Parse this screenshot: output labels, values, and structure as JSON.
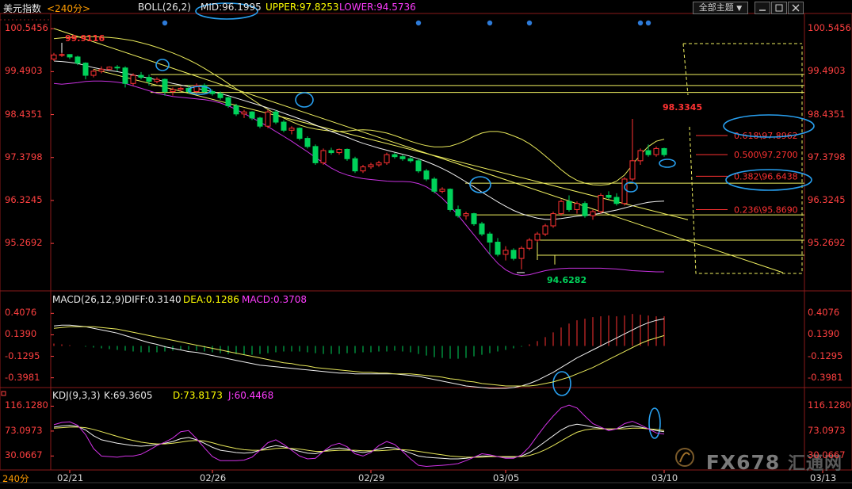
{
  "header": {
    "symbol": "美元指数",
    "period": "<240分>",
    "boll": "BOLL(26,2)",
    "mid": "MID:96.1995",
    "upper": "UPPER:97.8253",
    "lower": "LOWER:94.5736",
    "theme_button": "全部主题",
    "theme_arrow": "▼"
  },
  "macd_header": {
    "title": "MACD(26,12,9)",
    "diff": "DIFF:0.3140",
    "dea": "DEA:0.1286",
    "macd": "MACD:0.3708"
  },
  "kdj_header": {
    "title": "KDJ(9,3,3)",
    "k": "K:69.3605",
    "d": "D:73.8173",
    "j": "J:60.4468"
  },
  "period_tab": "240分",
  "watermark": "FX678",
  "watermark_cn": "汇通网",
  "colors": {
    "up": "#ff3232",
    "down": "#00d25a",
    "boll_mid": "#f0f0f0",
    "boll_band": "#e8e85a",
    "lower_band": "#c832e0",
    "fib": "#f0f060",
    "trend": "#f0f060",
    "highlight": "#28a0f0",
    "axis_label": "#ff4040"
  },
  "chart_data": [
    {
      "type": "candlestick",
      "name": "main",
      "ylim": [
        94.2,
        100.9
      ],
      "y_ticks": [
        "100.5456",
        "99.4903",
        "98.4351",
        "97.3798",
        "96.3245",
        "95.2692"
      ],
      "y_tick_values": [
        100.5456,
        99.4903,
        98.4351,
        97.3798,
        96.3245,
        95.2692
      ],
      "x_ticks": [
        "02/21",
        "02/26",
        "02/29",
        "03/05",
        "03/10",
        "03/13"
      ],
      "x_tick_index": [
        2,
        20,
        40,
        57,
        77,
        97
      ],
      "high_label": "99.9116",
      "low_label": "94.6282",
      "spike_label": "98.3345",
      "ohlc": [
        [
          99.8,
          99.95,
          99.75,
          99.9
        ],
        [
          99.9,
          99.95,
          99.85,
          99.91
        ],
        [
          99.91,
          99.92,
          99.8,
          99.85
        ],
        [
          99.85,
          99.88,
          99.65,
          99.7
        ],
        [
          99.7,
          99.72,
          99.3,
          99.4
        ],
        [
          99.4,
          99.55,
          99.35,
          99.5
        ],
        [
          99.5,
          99.62,
          99.45,
          99.55
        ],
        [
          99.55,
          99.62,
          99.52,
          99.6
        ],
        [
          99.6,
          99.65,
          99.5,
          99.58
        ],
        [
          99.58,
          99.62,
          99.1,
          99.2
        ],
        [
          99.2,
          99.45,
          99.15,
          99.4
        ],
        [
          99.4,
          99.48,
          99.3,
          99.35
        ],
        [
          99.35,
          99.42,
          99.15,
          99.25
        ],
        [
          99.25,
          99.35,
          99.2,
          99.3
        ],
        [
          99.3,
          99.32,
          98.9,
          99.0
        ],
        [
          99.0,
          99.1,
          98.9,
          99.05
        ],
        [
          99.05,
          99.12,
          99.0,
          99.08
        ],
        [
          99.08,
          99.15,
          98.95,
          99.0
        ],
        [
          99.0,
          99.2,
          98.95,
          99.15
        ],
        [
          99.15,
          99.2,
          98.95,
          99.0
        ],
        [
          99.0,
          99.05,
          98.9,
          98.95
        ],
        [
          98.95,
          99.0,
          98.8,
          98.85
        ],
        [
          98.85,
          98.88,
          98.6,
          98.65
        ],
        [
          98.65,
          98.7,
          98.4,
          98.45
        ],
        [
          98.45,
          98.55,
          98.35,
          98.5
        ],
        [
          98.5,
          98.52,
          98.3,
          98.35
        ],
        [
          98.35,
          98.38,
          98.1,
          98.15
        ],
        [
          98.15,
          98.55,
          98.1,
          98.5
        ],
        [
          98.5,
          98.55,
          98.2,
          98.25
        ],
        [
          98.25,
          98.3,
          98.0,
          98.05
        ],
        [
          98.05,
          98.15,
          97.95,
          98.1
        ],
        [
          98.1,
          98.12,
          97.8,
          97.85
        ],
        [
          97.85,
          97.9,
          97.6,
          97.65
        ],
        [
          97.65,
          97.7,
          97.2,
          97.25
        ],
        [
          97.25,
          97.6,
          97.2,
          97.55
        ],
        [
          97.55,
          97.62,
          97.45,
          97.5
        ],
        [
          97.5,
          97.6,
          97.45,
          97.58
        ],
        [
          97.58,
          97.6,
          97.3,
          97.35
        ],
        [
          97.35,
          97.4,
          97.0,
          97.05
        ],
        [
          97.05,
          97.2,
          97.0,
          97.15
        ],
        [
          97.15,
          97.25,
          97.1,
          97.2
        ],
        [
          97.2,
          97.3,
          97.15,
          97.25
        ],
        [
          97.25,
          97.5,
          97.2,
          97.45
        ],
        [
          97.45,
          97.5,
          97.35,
          97.4
        ],
        [
          97.4,
          97.45,
          97.3,
          97.35
        ],
        [
          97.35,
          97.4,
          97.25,
          97.3
        ],
        [
          97.3,
          97.35,
          97.0,
          97.05
        ],
        [
          97.05,
          97.1,
          96.8,
          96.85
        ],
        [
          96.85,
          96.9,
          96.5,
          96.55
        ],
        [
          96.55,
          96.65,
          96.5,
          96.6
        ],
        [
          96.6,
          96.62,
          96.05,
          96.1
        ],
        [
          96.1,
          96.2,
          95.9,
          95.95
        ],
        [
          95.95,
          96.05,
          95.85,
          96.0
        ],
        [
          96.0,
          96.02,
          95.7,
          95.75
        ],
        [
          95.75,
          95.8,
          95.45,
          95.5
        ],
        [
          95.5,
          95.55,
          95.0,
          95.3
        ],
        [
          95.3,
          95.4,
          94.95,
          95.0
        ],
        [
          95.0,
          95.2,
          94.85,
          95.1
        ],
        [
          95.1,
          95.15,
          94.85,
          94.9
        ],
        [
          94.9,
          95.2,
          94.63,
          95.15
        ],
        [
          95.15,
          95.4,
          95.1,
          95.35
        ],
        [
          95.35,
          95.55,
          95.3,
          95.5
        ],
        [
          95.5,
          95.75,
          95.45,
          95.7
        ],
        [
          95.7,
          96.05,
          95.65,
          96.0
        ],
        [
          96.0,
          96.35,
          95.95,
          96.3
        ],
        [
          96.3,
          96.45,
          96.05,
          96.1
        ],
        [
          96.1,
          96.3,
          96.0,
          96.25
        ],
        [
          96.25,
          96.3,
          95.9,
          95.95
        ],
        [
          95.95,
          96.1,
          95.85,
          96.05
        ],
        [
          96.05,
          96.5,
          96.0,
          96.45
        ],
        [
          96.45,
          96.55,
          96.35,
          96.4
        ],
        [
          96.4,
          96.5,
          96.2,
          96.25
        ],
        [
          96.25,
          96.9,
          96.2,
          96.85
        ],
        [
          96.85,
          98.33,
          96.8,
          97.3
        ],
        [
          97.3,
          97.6,
          97.2,
          97.55
        ],
        [
          97.55,
          97.7,
          97.4,
          97.45
        ],
        [
          97.45,
          97.65,
          97.4,
          97.6
        ],
        [
          97.6,
          97.62,
          97.4,
          97.45
        ]
      ],
      "boll_mid": [
        99.75,
        99.74,
        99.72,
        99.69,
        99.64,
        99.59,
        99.55,
        99.52,
        99.49,
        99.45,
        99.41,
        99.37,
        99.33,
        99.29,
        99.25,
        99.2,
        99.16,
        99.12,
        99.08,
        99.04,
        99.0,
        98.95,
        98.9,
        98.84,
        98.78,
        98.72,
        98.66,
        98.6,
        98.54,
        98.47,
        98.4,
        98.33,
        98.26,
        98.18,
        98.1,
        98.02,
        97.95,
        97.88,
        97.8,
        97.73,
        97.67,
        97.61,
        97.56,
        97.51,
        97.46,
        97.41,
        97.35,
        97.28,
        97.2,
        97.11,
        97.01,
        96.9,
        96.78,
        96.66,
        96.53,
        96.41,
        96.29,
        96.18,
        96.08,
        96.0,
        95.94,
        95.89,
        95.86,
        95.86,
        95.88,
        95.91,
        95.94,
        95.96,
        95.98,
        96.01,
        96.05,
        96.09,
        96.14,
        96.19,
        96.24,
        96.28,
        96.3,
        96.31
      ],
      "boll_upper": [
        100.3,
        100.32,
        100.33,
        100.34,
        100.35,
        100.35,
        100.34,
        100.33,
        100.31,
        100.28,
        100.25,
        100.2,
        100.15,
        100.09,
        100.02,
        99.95,
        99.87,
        99.78,
        99.68,
        99.57,
        99.45,
        99.33,
        99.2,
        99.07,
        98.94,
        98.81,
        98.68,
        98.56,
        98.45,
        98.35,
        98.26,
        98.18,
        98.12,
        98.08,
        98.05,
        98.03,
        98.02,
        98.03,
        98.05,
        98.06,
        98.05,
        98.02,
        97.98,
        97.92,
        97.85,
        97.78,
        97.72,
        97.67,
        97.64,
        97.64,
        97.66,
        97.72,
        97.8,
        97.9,
        97.98,
        98.02,
        98.02,
        97.98,
        97.91,
        97.83,
        97.72,
        97.58,
        97.42,
        97.25,
        97.08,
        96.93,
        96.82,
        96.75,
        96.71,
        96.7,
        96.72,
        96.8,
        96.95,
        97.2,
        97.45,
        97.65,
        97.78,
        97.83
      ],
      "boll_lower": [
        99.2,
        99.18,
        99.2,
        99.22,
        99.25,
        99.26,
        99.26,
        99.25,
        99.23,
        99.2,
        99.14,
        99.08,
        99.02,
        98.96,
        98.92,
        98.88,
        98.86,
        98.84,
        98.82,
        98.8,
        98.77,
        98.72,
        98.65,
        98.56,
        98.46,
        98.36,
        98.25,
        98.14,
        98.02,
        97.9,
        97.78,
        97.65,
        97.52,
        97.38,
        97.25,
        97.12,
        97.02,
        96.95,
        96.9,
        96.86,
        96.84,
        96.82,
        96.8,
        96.79,
        96.79,
        96.78,
        96.74,
        96.66,
        96.54,
        96.38,
        96.18,
        95.96,
        95.72,
        95.48,
        95.24,
        95.0,
        94.78,
        94.62,
        94.52,
        94.48,
        94.5,
        94.55,
        94.6,
        94.63,
        94.65,
        94.66,
        94.66,
        94.66,
        94.66,
        94.66,
        94.65,
        94.64,
        94.62,
        94.6,
        94.59,
        94.58,
        94.57,
        94.57
      ],
      "fib_levels": [
        {
          "label": "0.618\\97.8962",
          "value": 97.8962,
          "label_y": 97.92
        },
        {
          "label": "0.500\\97.2700",
          "value": 97.27,
          "label_y": 97.45
        },
        {
          "label": "0.382\\96.6438",
          "value": 96.6438,
          "label_y": 96.92
        },
        {
          "label": "0.236\\95.8690",
          "value": 95.869,
          "label_y": 96.1
        }
      ],
      "support_lines": [
        99.42,
        99.15,
        98.98,
        96.75,
        95.97,
        95.35,
        94.98
      ],
      "trendline": {
        "from": [
          0,
          100.55
        ],
        "to": [
          92,
          94.55
        ]
      },
      "trendline2": {
        "from": [
          5,
          99.55
        ],
        "to": [
          80,
          95.85
        ]
      }
    },
    {
      "type": "bar+line",
      "name": "MACD",
      "ylim": [
        -0.55,
        0.52
      ],
      "y_ticks": [
        "0.4076",
        "0.1390",
        "-0.1295",
        "-0.3981"
      ],
      "y_tick_values": [
        0.4076,
        0.139,
        -0.1295,
        -0.3981
      ],
      "histogram": [
        0.03,
        0.02,
        0.01,
        0.0,
        -0.01,
        -0.02,
        -0.03,
        -0.04,
        -0.05,
        -0.06,
        -0.07,
        -0.08,
        -0.08,
        -0.08,
        -0.07,
        -0.06,
        -0.05,
        -0.05,
        -0.06,
        -0.07,
        -0.08,
        -0.09,
        -0.1,
        -0.1,
        -0.11,
        -0.11,
        -0.1,
        -0.09,
        -0.08,
        -0.07,
        -0.07,
        -0.07,
        -0.08,
        -0.09,
        -0.1,
        -0.1,
        -0.1,
        -0.09,
        -0.09,
        -0.08,
        -0.08,
        -0.07,
        -0.07,
        -0.06,
        -0.07,
        -0.08,
        -0.1,
        -0.12,
        -0.14,
        -0.15,
        -0.16,
        -0.16,
        -0.15,
        -0.13,
        -0.11,
        -0.09,
        -0.07,
        -0.05,
        -0.03,
        -0.01,
        0.02,
        0.06,
        0.11,
        0.17,
        0.23,
        0.28,
        0.32,
        0.34,
        0.36,
        0.37,
        0.38,
        0.37,
        0.38,
        0.4,
        0.39,
        0.38,
        0.37,
        0.37
      ],
      "diff": [
        0.25,
        0.26,
        0.26,
        0.25,
        0.24,
        0.22,
        0.2,
        0.18,
        0.16,
        0.13,
        0.1,
        0.07,
        0.04,
        0.02,
        -0.01,
        -0.03,
        -0.05,
        -0.07,
        -0.08,
        -0.1,
        -0.12,
        -0.14,
        -0.16,
        -0.18,
        -0.2,
        -0.22,
        -0.24,
        -0.25,
        -0.26,
        -0.27,
        -0.28,
        -0.29,
        -0.3,
        -0.31,
        -0.32,
        -0.33,
        -0.34,
        -0.34,
        -0.35,
        -0.35,
        -0.35,
        -0.35,
        -0.35,
        -0.35,
        -0.36,
        -0.37,
        -0.38,
        -0.4,
        -0.42,
        -0.44,
        -0.46,
        -0.48,
        -0.5,
        -0.51,
        -0.52,
        -0.53,
        -0.53,
        -0.53,
        -0.52,
        -0.5,
        -0.47,
        -0.43,
        -0.38,
        -0.33,
        -0.27,
        -0.21,
        -0.15,
        -0.1,
        -0.05,
        0.0,
        0.05,
        0.1,
        0.15,
        0.2,
        0.25,
        0.29,
        0.32,
        0.34
      ],
      "dea": [
        0.22,
        0.23,
        0.24,
        0.24,
        0.24,
        0.24,
        0.23,
        0.22,
        0.21,
        0.19,
        0.17,
        0.15,
        0.13,
        0.11,
        0.09,
        0.07,
        0.05,
        0.03,
        0.01,
        -0.01,
        -0.03,
        -0.05,
        -0.07,
        -0.09,
        -0.11,
        -0.13,
        -0.15,
        -0.17,
        -0.19,
        -0.21,
        -0.22,
        -0.24,
        -0.25,
        -0.27,
        -0.28,
        -0.29,
        -0.3,
        -0.31,
        -0.32,
        -0.33,
        -0.33,
        -0.34,
        -0.34,
        -0.35,
        -0.35,
        -0.35,
        -0.36,
        -0.37,
        -0.38,
        -0.39,
        -0.41,
        -0.42,
        -0.44,
        -0.45,
        -0.47,
        -0.48,
        -0.49,
        -0.5,
        -0.5,
        -0.5,
        -0.5,
        -0.49,
        -0.47,
        -0.45,
        -0.42,
        -0.39,
        -0.35,
        -0.31,
        -0.27,
        -0.22,
        -0.17,
        -0.12,
        -0.07,
        -0.02,
        0.03,
        0.07,
        0.1,
        0.13
      ]
    },
    {
      "type": "line",
      "name": "KDJ",
      "ylim": [
        10,
        125
      ],
      "y_ticks": [
        "116.1280",
        "73.0973",
        "30.0667"
      ],
      "y_tick_values": [
        116.128,
        73.0973,
        30.0667
      ],
      "k": [
        80,
        82,
        83,
        81,
        75,
        65,
        58,
        55,
        52,
        50,
        48,
        47,
        48,
        50,
        52,
        55,
        60,
        62,
        58,
        52,
        45,
        40,
        38,
        36,
        35,
        36,
        40,
        45,
        48,
        46,
        42,
        38,
        35,
        34,
        38,
        42,
        44,
        42,
        38,
        36,
        38,
        42,
        45,
        44,
        40,
        35,
        30,
        28,
        27,
        26,
        25,
        25,
        26,
        28,
        30,
        30,
        29,
        28,
        28,
        30,
        36,
        45,
        55,
        65,
        75,
        82,
        85,
        83,
        80,
        78,
        76,
        77,
        80,
        82,
        80,
        77,
        74,
        72
      ],
      "d": [
        78,
        79,
        80,
        80,
        79,
        76,
        72,
        68,
        64,
        60,
        57,
        54,
        52,
        51,
        51,
        52,
        54,
        56,
        57,
        56,
        53,
        49,
        46,
        43,
        41,
        40,
        40,
        41,
        43,
        44,
        43,
        42,
        40,
        38,
        38,
        39,
        40,
        40,
        40,
        39,
        39,
        39,
        40,
        41,
        41,
        40,
        38,
        36,
        34,
        32,
        30,
        29,
        28,
        28,
        28,
        29,
        29,
        29,
        29,
        29,
        31,
        35,
        41,
        48,
        56,
        64,
        71,
        75,
        77,
        77,
        77,
        77,
        77,
        78,
        78,
        77,
        76,
        74
      ],
      "j": [
        84,
        88,
        89,
        83,
        67,
        43,
        30,
        29,
        28,
        30,
        30,
        33,
        40,
        48,
        54,
        61,
        72,
        74,
        60,
        44,
        29,
        22,
        22,
        22,
        23,
        28,
        40,
        53,
        58,
        50,
        40,
        30,
        25,
        26,
        38,
        48,
        52,
        46,
        34,
        30,
        36,
        48,
        55,
        50,
        38,
        25,
        14,
        12,
        13,
        14,
        15,
        17,
        22,
        28,
        34,
        32,
        29,
        26,
        26,
        32,
        46,
        65,
        83,
        99,
        113,
        118,
        113,
        99,
        86,
        80,
        74,
        77,
        86,
        90,
        84,
        77,
        70,
        68
      ]
    }
  ]
}
